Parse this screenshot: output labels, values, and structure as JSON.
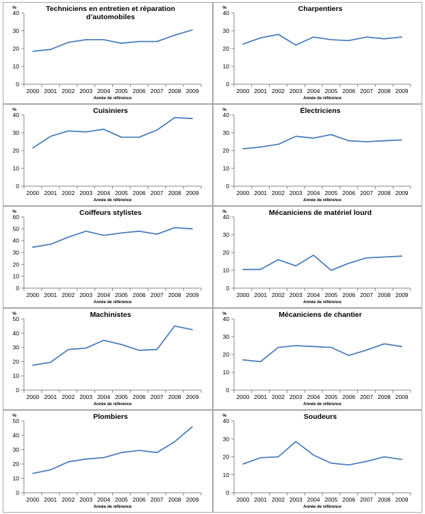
{
  "chart_data": [
    {
      "type": "line",
      "title_lines": [
        "Techniciens en entretien et réparation",
        "d’automobiles"
      ],
      "ylabel": "%",
      "xlabel": "Année de référence",
      "ylim": [
        0,
        40
      ],
      "yticks": [
        0,
        10,
        20,
        30,
        40
      ],
      "categories": [
        "2000",
        "2001",
        "2002",
        "2003",
        "2004",
        "2005",
        "2006",
        "2007",
        "2008",
        "2009"
      ],
      "values": [
        18.5,
        19.5,
        23.5,
        25,
        25,
        23,
        24,
        24,
        27.5,
        30.5
      ],
      "color": "#4a7ebb"
    },
    {
      "type": "line",
      "title_lines": [
        "Charpentiers"
      ],
      "ylabel": "%",
      "xlabel": "Année de référence",
      "ylim": [
        0,
        40
      ],
      "yticks": [
        0,
        10,
        20,
        30,
        40
      ],
      "categories": [
        "2000",
        "2001",
        "2002",
        "2003",
        "2004",
        "2005",
        "2006",
        "2007",
        "2008",
        "2009"
      ],
      "values": [
        22.5,
        26,
        28,
        22,
        26.5,
        25,
        24.5,
        26.5,
        25.5,
        26.5
      ],
      "color": "#4a7ebb"
    },
    {
      "type": "line",
      "title_lines": [
        "Cuisiniers"
      ],
      "ylabel": "%",
      "xlabel": "Année de référence",
      "ylim": [
        0,
        40
      ],
      "yticks": [
        0,
        10,
        20,
        30,
        40
      ],
      "categories": [
        "2000",
        "2001",
        "2002",
        "2003",
        "2004",
        "2005",
        "2006",
        "2007",
        "2008",
        "2009"
      ],
      "values": [
        21.5,
        28,
        31,
        30.5,
        32,
        27.5,
        27.5,
        31.5,
        38.5,
        38
      ],
      "color": "#4a7ebb"
    },
    {
      "type": "line",
      "title_lines": [
        "Électriciens"
      ],
      "ylabel": "%",
      "xlabel": "Année de référence",
      "ylim": [
        0,
        40
      ],
      "yticks": [
        0,
        10,
        20,
        30,
        40
      ],
      "categories": [
        "2000",
        "2001",
        "2002",
        "2003",
        "2004",
        "2005",
        "2006",
        "2007",
        "2008",
        "2009"
      ],
      "values": [
        21,
        22,
        23.5,
        28,
        27,
        29,
        25.5,
        25,
        25.5,
        26
      ],
      "color": "#4a7ebb"
    },
    {
      "type": "line",
      "title_lines": [
        "Coiffeurs stylistes"
      ],
      "ylabel": "%",
      "xlabel": "Année de référence",
      "ylim": [
        0,
        60
      ],
      "yticks": [
        0,
        10,
        20,
        30,
        40,
        50,
        60
      ],
      "categories": [
        "2000",
        "2001",
        "2002",
        "2003",
        "2004",
        "2005",
        "2006",
        "2007",
        "2008",
        "2009"
      ],
      "values": [
        34.5,
        37,
        43,
        48,
        44.5,
        46.5,
        48,
        45.5,
        51,
        50
      ],
      "color": "#4a7ebb"
    },
    {
      "type": "line",
      "title_lines": [
        "Mécaniciens de matériel lourd"
      ],
      "ylabel": "%",
      "xlabel": "Année de référence",
      "ylim": [
        0,
        40
      ],
      "yticks": [
        0,
        10,
        20,
        30,
        40
      ],
      "categories": [
        "2000",
        "2001",
        "2002",
        "2003",
        "2004",
        "2005",
        "2006",
        "2007",
        "2008",
        "2009"
      ],
      "values": [
        10.5,
        10.5,
        16,
        12.5,
        18.5,
        10,
        14,
        17,
        17.5,
        18
      ],
      "color": "#4a7ebb"
    },
    {
      "type": "line",
      "title_lines": [
        "Machinistes"
      ],
      "ylabel": "%",
      "xlabel": "Année de référence",
      "ylim": [
        0,
        50
      ],
      "yticks": [
        0,
        10,
        20,
        30,
        40,
        50
      ],
      "categories": [
        "2000",
        "2001",
        "2002",
        "2003",
        "2004",
        "2005",
        "2006",
        "2007",
        "2008",
        "2009"
      ],
      "values": [
        17.5,
        19.5,
        28.5,
        29.5,
        35,
        32,
        28,
        28.5,
        45,
        42.5
      ],
      "color": "#4a7ebb"
    },
    {
      "type": "line",
      "title_lines": [
        "Mécaniciens de chantier"
      ],
      "ylabel": "%",
      "xlabel": "Année de référence",
      "ylim": [
        0,
        40
      ],
      "yticks": [
        0,
        10,
        20,
        30,
        40
      ],
      "categories": [
        "2000",
        "2001",
        "2002",
        "2003",
        "2004",
        "2005",
        "2006",
        "2007",
        "2008",
        "2009"
      ],
      "values": [
        17,
        16,
        24,
        25,
        24.5,
        24,
        19.5,
        22.5,
        26,
        24.5
      ],
      "color": "#4a7ebb"
    },
    {
      "type": "line",
      "title_lines": [
        "Plombiers"
      ],
      "ylabel": "%",
      "xlabel": "Année de référence",
      "ylim": [
        0,
        50
      ],
      "yticks": [
        0,
        10,
        20,
        30,
        40,
        50
      ],
      "categories": [
        "2000",
        "2001",
        "2002",
        "2003",
        "2004",
        "2005",
        "2006",
        "2007",
        "2008",
        "2009"
      ],
      "values": [
        13.5,
        16,
        21.5,
        23.5,
        24.5,
        28,
        29.5,
        28,
        35.5,
        46
      ],
      "color": "#4a7ebb"
    },
    {
      "type": "line",
      "title_lines": [
        "Soudeurs"
      ],
      "ylabel": "%",
      "xlabel": "Année de référence",
      "ylim": [
        0,
        40
      ],
      "yticks": [
        0,
        10,
        20,
        30,
        40
      ],
      "categories": [
        "2000",
        "2001",
        "2002",
        "2003",
        "2004",
        "2005",
        "2006",
        "2007",
        "2008",
        "2009"
      ],
      "values": [
        16,
        19.5,
        20,
        28.5,
        21,
        16.5,
        15.5,
        17.5,
        20,
        18.5
      ],
      "color": "#4a7ebb"
    }
  ]
}
